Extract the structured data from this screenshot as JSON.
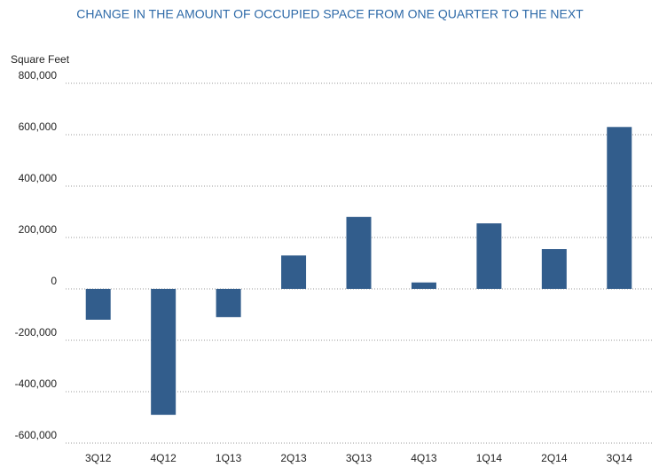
{
  "chart_data": {
    "type": "bar",
    "title": "CHANGE IN THE AMOUNT OF OCCUPIED SPACE FROM ONE QUARTER TO THE NEXT",
    "y_axis_label": "Square Feet",
    "categories": [
      "3Q12",
      "4Q12",
      "1Q13",
      "2Q13",
      "3Q13",
      "4Q13",
      "1Q14",
      "2Q14",
      "3Q14"
    ],
    "values": [
      -120000,
      -490000,
      -110000,
      130000,
      280000,
      25000,
      255000,
      155000,
      630000
    ],
    "color": "#325d8c",
    "ylim": [
      -600000,
      800000
    ],
    "yticks": [
      {
        "value": -600000,
        "label": "-600,000"
      },
      {
        "value": -400000,
        "label": "-400,000"
      },
      {
        "value": -200000,
        "label": "-200,000"
      },
      0,
      {
        "value": 200000,
        "label": "200,000"
      },
      {
        "value": 400000,
        "label": "400,000"
      },
      {
        "value": 600000,
        "label": "600,000"
      },
      {
        "value": 800000,
        "label": "800,000"
      }
    ],
    "grid": true
  }
}
